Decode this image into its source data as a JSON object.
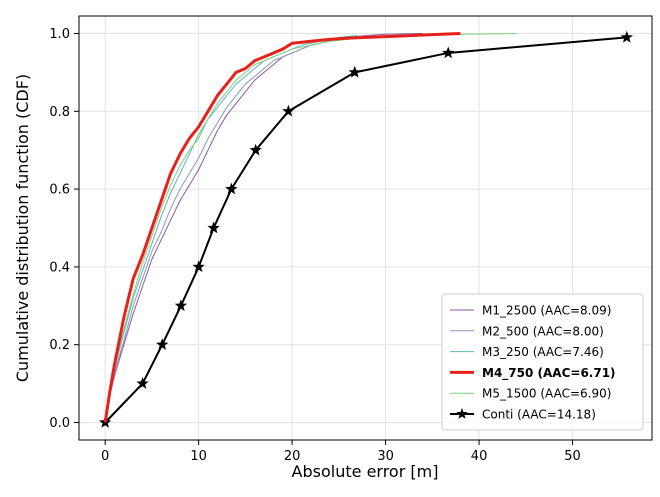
{
  "chart_data": {
    "type": "line",
    "xlabel": "Absolute error [m]",
    "ylabel": "Cumulative distribution function (CDF)",
    "xlim": [
      -2.8,
      58.5
    ],
    "ylim": [
      -0.045,
      1.045
    ],
    "xticks": [
      0,
      10,
      20,
      30,
      40,
      50
    ],
    "yticks": [
      0.0,
      0.2,
      0.4,
      0.6,
      0.8,
      1.0
    ],
    "xtick_labels": [
      "0",
      "10",
      "20",
      "30",
      "40",
      "50"
    ],
    "ytick_labels": [
      "0.0",
      "0.2",
      "0.4",
      "0.6",
      "0.8",
      "1.0"
    ],
    "grid": true,
    "legend_position": "lower-right",
    "series": [
      {
        "name": "M1_2500 (AAC=8.09)",
        "color": "#8a5a9e",
        "width": 1,
        "bold": false,
        "marker": "none",
        "x": [
          0,
          0.5,
          1,
          2,
          3,
          4,
          5,
          6,
          7,
          8,
          9,
          10,
          11,
          12,
          13,
          14,
          15,
          16,
          17,
          18,
          19,
          20,
          21,
          22,
          24,
          26,
          28,
          30,
          32,
          34
        ],
        "y": [
          0,
          0.07,
          0.12,
          0.2,
          0.28,
          0.35,
          0.42,
          0.47,
          0.52,
          0.57,
          0.61,
          0.65,
          0.7,
          0.75,
          0.79,
          0.82,
          0.85,
          0.88,
          0.9,
          0.92,
          0.94,
          0.95,
          0.96,
          0.97,
          0.98,
          0.99,
          0.995,
          0.998,
          0.999,
          1.0
        ]
      },
      {
        "name": "M2_500 (AAC=8.00)",
        "color": "#8f94c0",
        "width": 1,
        "bold": false,
        "marker": "none",
        "x": [
          0,
          0.5,
          1,
          2,
          3,
          4,
          5,
          6,
          7,
          8,
          9,
          10,
          11,
          12,
          13,
          14,
          15,
          16,
          17,
          18,
          19,
          20,
          21,
          22,
          23,
          24,
          25
        ],
        "y": [
          0,
          0.07,
          0.13,
          0.21,
          0.3,
          0.37,
          0.44,
          0.49,
          0.55,
          0.6,
          0.64,
          0.68,
          0.73,
          0.77,
          0.81,
          0.84,
          0.87,
          0.89,
          0.91,
          0.93,
          0.94,
          0.95,
          0.96,
          0.97,
          0.975,
          0.98,
          0.985
        ]
      },
      {
        "name": "M3_250 (AAC=7.46)",
        "color": "#5eb4b8",
        "width": 1,
        "bold": false,
        "marker": "none",
        "x": [
          0,
          0.5,
          1,
          2,
          3,
          4,
          5,
          6,
          7,
          8,
          9,
          10,
          11,
          12,
          13,
          14,
          15,
          16,
          17,
          18,
          19,
          20,
          21,
          22,
          23,
          24,
          25,
          27
        ],
        "y": [
          0,
          0.08,
          0.14,
          0.23,
          0.32,
          0.39,
          0.46,
          0.53,
          0.59,
          0.64,
          0.69,
          0.74,
          0.78,
          0.81,
          0.84,
          0.87,
          0.89,
          0.91,
          0.93,
          0.94,
          0.95,
          0.96,
          0.97,
          0.975,
          0.98,
          0.985,
          0.99,
          0.995
        ]
      },
      {
        "name": "M4_750 (AAC=6.71)",
        "color": "#e8201c",
        "width": 3,
        "bold": true,
        "marker": "none",
        "x": [
          0,
          0.5,
          1,
          1.5,
          2,
          2.5,
          3,
          3.5,
          4,
          5,
          6,
          7,
          8,
          9,
          10,
          11,
          12,
          13,
          14,
          15,
          16,
          17,
          18,
          19,
          20,
          22,
          24,
          26,
          28,
          30,
          32,
          34,
          36,
          38
        ],
        "y": [
          0,
          0.08,
          0.15,
          0.21,
          0.27,
          0.32,
          0.37,
          0.4,
          0.43,
          0.5,
          0.57,
          0.64,
          0.69,
          0.73,
          0.76,
          0.8,
          0.84,
          0.87,
          0.9,
          0.91,
          0.93,
          0.94,
          0.95,
          0.96,
          0.975,
          0.98,
          0.985,
          0.988,
          0.99,
          0.992,
          0.994,
          0.996,
          0.998,
          1.0
        ]
      },
      {
        "name": "M5_1500 (AAC=6.90)",
        "color": "#7fcf7a",
        "width": 1,
        "bold": false,
        "marker": "none",
        "x": [
          0,
          0.5,
          1,
          2,
          3,
          4,
          5,
          6,
          7,
          8,
          9,
          10,
          11,
          12,
          13,
          14,
          15,
          16,
          17,
          18,
          19,
          20,
          22,
          24,
          26,
          28,
          30,
          34,
          38,
          44
        ],
        "y": [
          0,
          0.08,
          0.14,
          0.24,
          0.33,
          0.41,
          0.48,
          0.55,
          0.61,
          0.66,
          0.7,
          0.73,
          0.78,
          0.82,
          0.85,
          0.88,
          0.9,
          0.92,
          0.93,
          0.94,
          0.95,
          0.96,
          0.97,
          0.98,
          0.985,
          0.99,
          0.993,
          0.996,
          0.998,
          1.0
        ]
      },
      {
        "name": "Conti (AAC=14.18)",
        "color": "#000000",
        "width": 2,
        "bold": false,
        "marker": "star",
        "x": [
          0,
          4.0,
          6.1,
          8.1,
          10.0,
          11.6,
          13.5,
          16.1,
          19.6,
          26.7,
          36.7,
          55.8
        ],
        "y": [
          0,
          0.1,
          0.2,
          0.3,
          0.4,
          0.5,
          0.6,
          0.7,
          0.8,
          0.9,
          0.95,
          0.99
        ]
      }
    ]
  }
}
